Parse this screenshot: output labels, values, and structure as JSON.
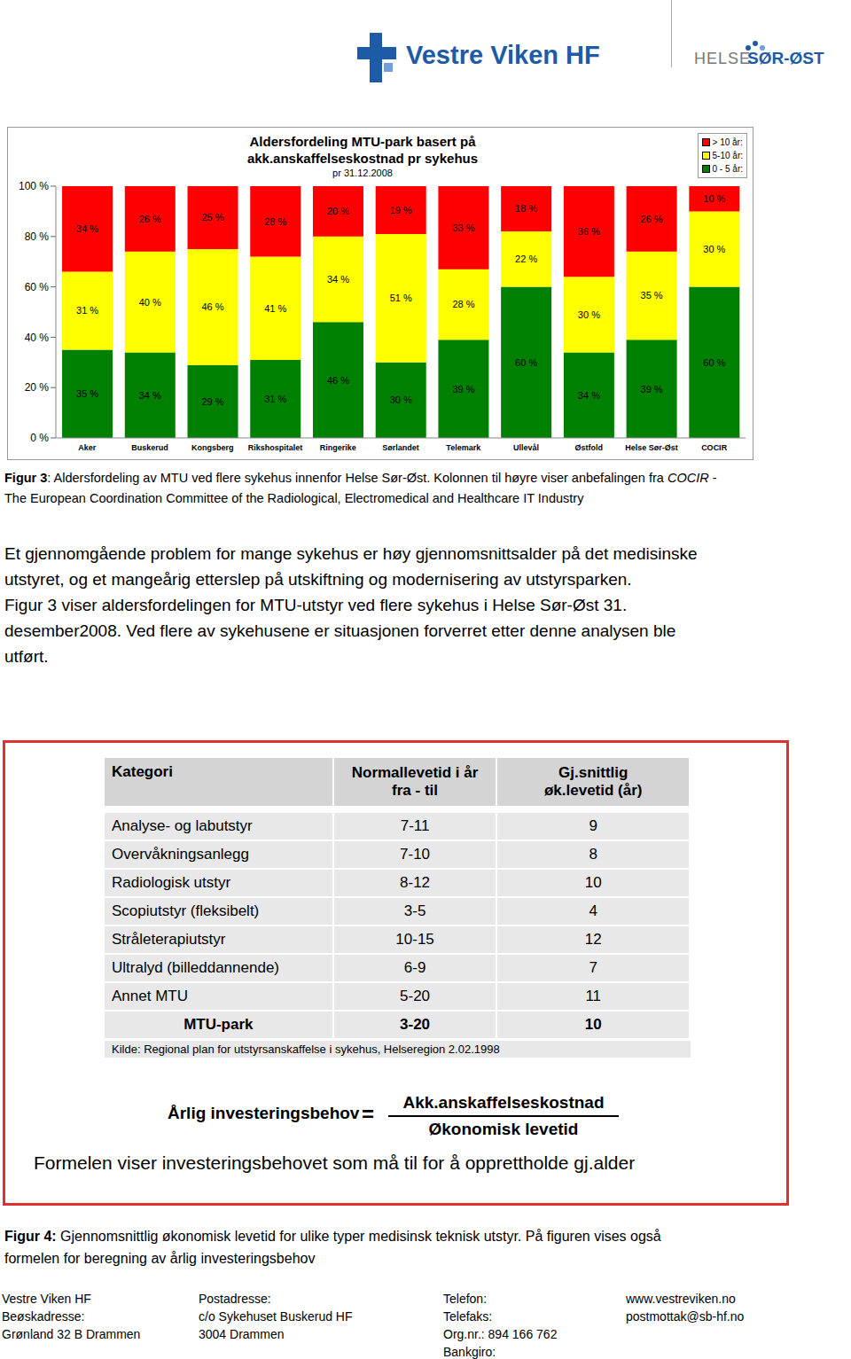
{
  "header": {
    "logo_left": "Vestre Viken HF",
    "logo_right_1": "HELSE",
    "logo_right_2": "SØR-ØST"
  },
  "chart_data": {
    "type": "bar",
    "stacked": true,
    "title": "Aldersfordeling MTU-park basert på akk.anskaffelseskostnad pr sykehus",
    "subtitle": "pr 31.12.2008",
    "categories": [
      "Aker",
      "Buskerud",
      "Kongsberg",
      "Rikshospitalet",
      "Ringerike",
      "Sørlandet",
      "Telemark",
      "Ullevål",
      "Østfold",
      "Helse Sør-Øst",
      "COCIR"
    ],
    "series": [
      {
        "name": "0 - 5 år:",
        "color": "#008000",
        "values": [
          35,
          34,
          29,
          31,
          46,
          30,
          39,
          60,
          34,
          39,
          60
        ],
        "value_labels": [
          "35 %",
          "34 %",
          "29 %",
          "31 %",
          "46 %",
          "30 %",
          "39 %",
          "60 %",
          "34 %",
          "39 %",
          "60 %"
        ]
      },
      {
        "name": "5-10 år:",
        "color": "#ffff00",
        "values": [
          31,
          40,
          46,
          41,
          34,
          51,
          28,
          22,
          30,
          35,
          30
        ],
        "value_labels": [
          "31 %",
          "40 %",
          "46 %",
          "41 %",
          "34 %",
          "51 %",
          "28 %",
          "22 %",
          "30 %",
          "35 %",
          "30 %"
        ]
      },
      {
        "name": "> 10 år:",
        "color": "#ff0000",
        "values": [
          34,
          26,
          25,
          28,
          20,
          19,
          33,
          18,
          36,
          26,
          10
        ],
        "value_labels": [
          "34 %",
          "26 %",
          "25 %",
          "28 %",
          "20 %",
          "19 %",
          "33 %",
          "18 %",
          "36 %",
          "26 %",
          "10 %"
        ]
      }
    ],
    "ylim": [
      0,
      100
    ],
    "yticks": [
      {
        "value": 0,
        "label": "0 %"
      },
      {
        "value": 20,
        "label": "20 %"
      },
      {
        "value": 40,
        "label": "40 %"
      },
      {
        "value": 60,
        "label": "60 %"
      },
      {
        "value": 80,
        "label": "80 %"
      },
      {
        "value": 100,
        "label": "100 %"
      }
    ],
    "grid": false,
    "data_labels": true,
    "legend": "upper right"
  },
  "figure_3_caption": [
    [
      {
        "text": "Figur 3",
        "style": "bold"
      },
      {
        "text": ": Aldersfordeling av MTU ved flere sykehus innenfor Helse Sør-Øst. Kolonnen til høyre viser anbefalingen fra "
      },
      {
        "text": "COCIR",
        "style": "italic"
      },
      {
        "text": " -"
      }
    ],
    [
      {
        "text": "The European Coordination Committee of the Radiological, Electromedical and Healthcare IT Industry"
      }
    ]
  ],
  "paragraph": [
    "Et gjennomgående problem for mange sykehus er høy gjennomsnittsalder på det medisinske",
    "utstyret, og et mangeårig etterslep på utskiftning og modernisering av utstyrsparken.",
    "Figur 3 viser aldersfordelingen for MTU-utstyr ved flere sykehus i Helse Sør-Øst 31.",
    "desember2008. Ved flere av sykehusene er situasjonen forverret etter denne analysen ble",
    "utført."
  ],
  "figure_4": {
    "table": {
      "header": [
        [
          "Kategori"
        ],
        [
          "Normallevetid i år",
          "fra - til"
        ],
        [
          "Gj.snittlig",
          "øk.levetid (år)"
        ]
      ],
      "rows": [
        [
          "Analyse- og labutstyr",
          "7-11",
          9
        ],
        [
          "Overvåkningsanlegg",
          "7-10",
          8
        ],
        [
          "Radiologisk utstyr",
          "8-12",
          10
        ],
        [
          "Scopiutstyr (fleksibelt)",
          "3-5",
          4
        ],
        [
          "Stråleterapiutstyr",
          "10-15",
          12
        ],
        [
          "Ultralyd (billeddannende)",
          "6-9",
          7
        ],
        [
          "Annet MTU",
          "5-20",
          11
        ]
      ],
      "total": [
        "MTU-park",
        "3-20",
        10
      ]
    },
    "source": "Kilde: Regional plan for utstyrsanskaffelse i sykehus, Helseregion 2.02.1998",
    "formula": {
      "left": "Årlig investeringsbehov",
      "equals": "=",
      "numerator": "Akk.anskaffelseskostnad",
      "denominator": "Økonomisk levetid"
    },
    "note": "Formelen viser investeringsbehovet som må til for å opprettholde gj.alder"
  },
  "figure_4_caption": [
    [
      {
        "text": "Figur 4:",
        "style": "bold"
      },
      {
        "text": " Gjennomsnittlig økonomisk levetid for ulike typer medisinsk teknisk utstyr. På figuren vises også"
      }
    ],
    [
      {
        "text": "formelen for beregning av årlig investeringsbehov"
      }
    ]
  ],
  "footer": [
    [
      "Vestre Viken HF",
      "Beøskadresse:",
      "Grønland 32 B Drammen"
    ],
    [
      "Postadresse:",
      "c/o Sykehuset Buskerud HF",
      "3004 Drammen"
    ],
    [
      "Telefon:",
      "Telefaks:",
      "Org.nr.: 894 166 762",
      "Bankgiro:"
    ],
    [
      "www.vestreviken.no",
      "postmottak@sb-hf.no"
    ]
  ]
}
